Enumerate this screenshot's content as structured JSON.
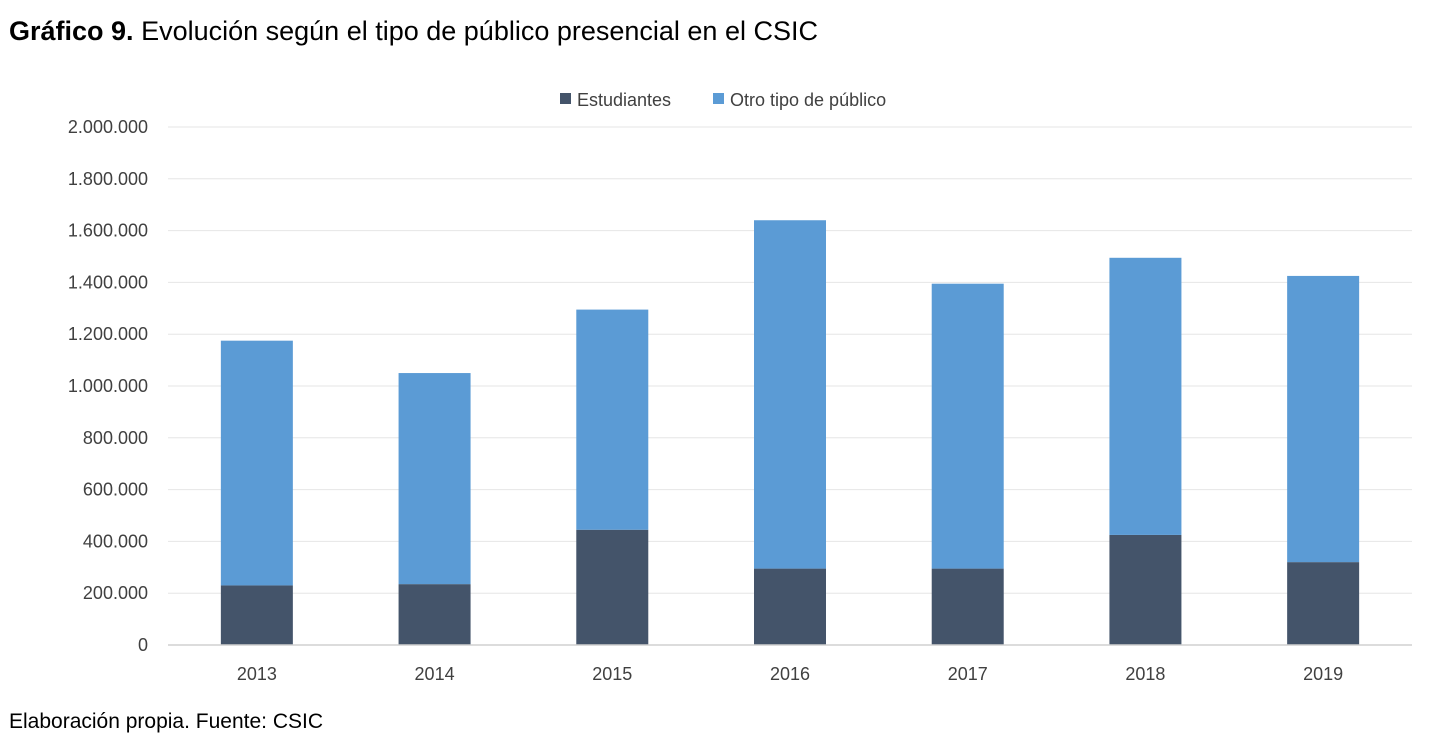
{
  "title": {
    "prefix": "Gráfico 9.",
    "text": "Evolución según el tipo de público presencial en el CSIC"
  },
  "source": "Elaboración propia. Fuente: CSIC",
  "colors": {
    "estudiantes": "#44546a",
    "otro": "#5b9bd5",
    "grid": "#e6e6e6",
    "axis": "#d0d0d0"
  },
  "chart_data": {
    "type": "bar",
    "stacked": true,
    "categories": [
      "2013",
      "2014",
      "2015",
      "2016",
      "2017",
      "2018",
      "2019"
    ],
    "series": [
      {
        "name": "Estudiantes",
        "values": [
          230000,
          235000,
          445000,
          295000,
          295000,
          425000,
          320000
        ]
      },
      {
        "name": "Otro tipo de público",
        "values": [
          945000,
          815000,
          850000,
          1345000,
          1100000,
          1070000,
          1105000
        ]
      }
    ],
    "ylim": [
      0,
      2000000
    ],
    "y_ticks": [
      "0",
      "200.000",
      "400.000",
      "600.000",
      "800.000",
      "1.000.000",
      "1.200.000",
      "1.400.000",
      "1.600.000",
      "1.800.000",
      "2.000.000"
    ],
    "grid": true,
    "legend_position": "top-center"
  }
}
